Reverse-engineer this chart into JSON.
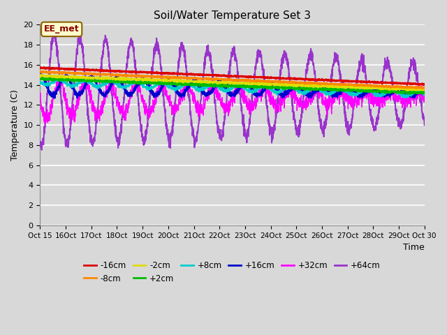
{
  "title": "Soil/Water Temperature Set 3",
  "xlabel": "Time",
  "ylabel": "Temperature (C)",
  "ylim": [
    0,
    20
  ],
  "yticks": [
    0,
    2,
    4,
    6,
    8,
    10,
    12,
    14,
    16,
    18,
    20
  ],
  "bg_color": "#d8d8d8",
  "annotation_text": "EE_met",
  "annotation_bg": "#ffffcc",
  "annotation_border": "#8b0000",
  "series": {
    "-16cm": {
      "color": "#dd0000",
      "lw": 1.8
    },
    "-8cm": {
      "color": "#ff8800",
      "lw": 1.8
    },
    "-2cm": {
      "color": "#dddd00",
      "lw": 1.8
    },
    "+2cm": {
      "color": "#00bb00",
      "lw": 1.8
    },
    "+8cm": {
      "color": "#00cccc",
      "lw": 1.8
    },
    "+16cm": {
      "color": "#0000cc",
      "lw": 1.8
    },
    "+32cm": {
      "color": "#ff00ff",
      "lw": 1.0
    },
    "+64cm": {
      "color": "#9933cc",
      "lw": 1.5
    }
  },
  "n_days": 15,
  "start_day": 15
}
